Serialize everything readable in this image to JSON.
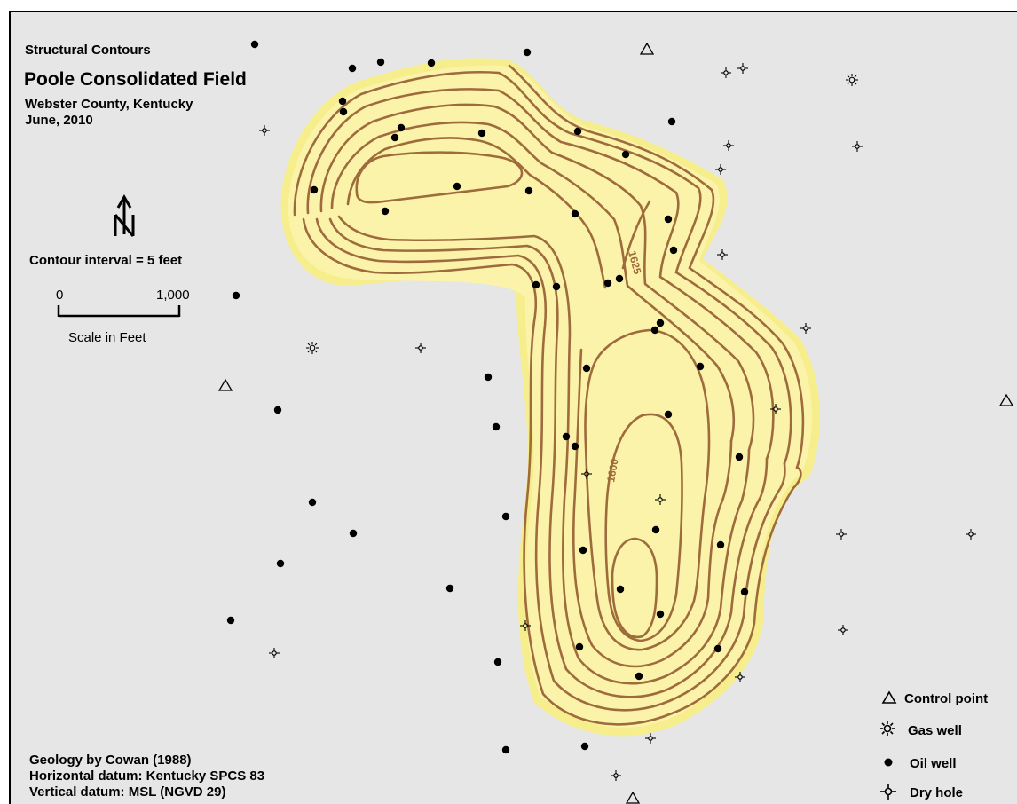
{
  "title_block": {
    "kicker": "Structural Contours",
    "title": "Poole Consolidated Field",
    "location": "Webster County, Kentucky",
    "date": "June, 2010"
  },
  "north_arrow": {
    "label": "N",
    "icon": "north-arrow-icon"
  },
  "contour_interval": "Contour interval = 5 feet",
  "scale_bar": {
    "start_label": "0",
    "end_label": "1,000",
    "caption": "Scale in Feet"
  },
  "contour_labels": [
    "1625",
    "1600"
  ],
  "legend": [
    {
      "symbol": "control-point-icon",
      "label": "Control point"
    },
    {
      "symbol": "gas-well-icon",
      "label": "Gas well"
    },
    {
      "symbol": "oil-well-icon",
      "label": "Oil well"
    },
    {
      "symbol": "dry-hole-icon",
      "label": "Dry hole"
    }
  ],
  "credits": [
    "Geology by Cowan (1988)",
    "Horizontal datum: Kentucky SPCS 83",
    "Vertical datum: MSL (NGVD 29)"
  ],
  "colors": {
    "background": "#e6e6e6",
    "field_fill": "#fbf3a9",
    "field_halo": "#f6ee8c",
    "contour": "#9e6b3c",
    "symbol": "#000000"
  }
}
